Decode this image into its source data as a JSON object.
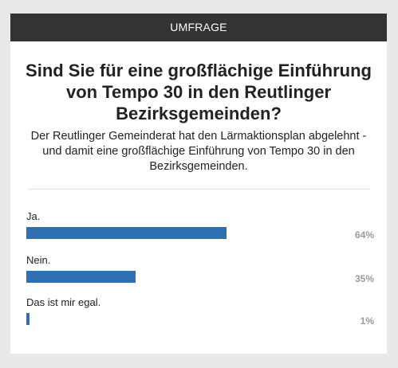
{
  "poll": {
    "header": "UMFRAGE",
    "question": "Sind Sie für eine großflächige Einführung von Tempo 30 in den Reutlinger Bezirksgemeinden?",
    "description": "Der Reutlinger Gemeinderat hat den Lärmaktionsplan abgelehnt - und damit eine großflächige Einführung von Tempo 30 in den Bezirksgemeinden.",
    "options": [
      {
        "label": "Ja.",
        "percent_label": "64%",
        "value": 64
      },
      {
        "label": "Nein.",
        "percent_label": "35%",
        "value": 35
      },
      {
        "label": "Das ist mir egal.",
        "percent_label": "1%",
        "value": 1
      }
    ],
    "bar_color": "#2f6fb3"
  }
}
